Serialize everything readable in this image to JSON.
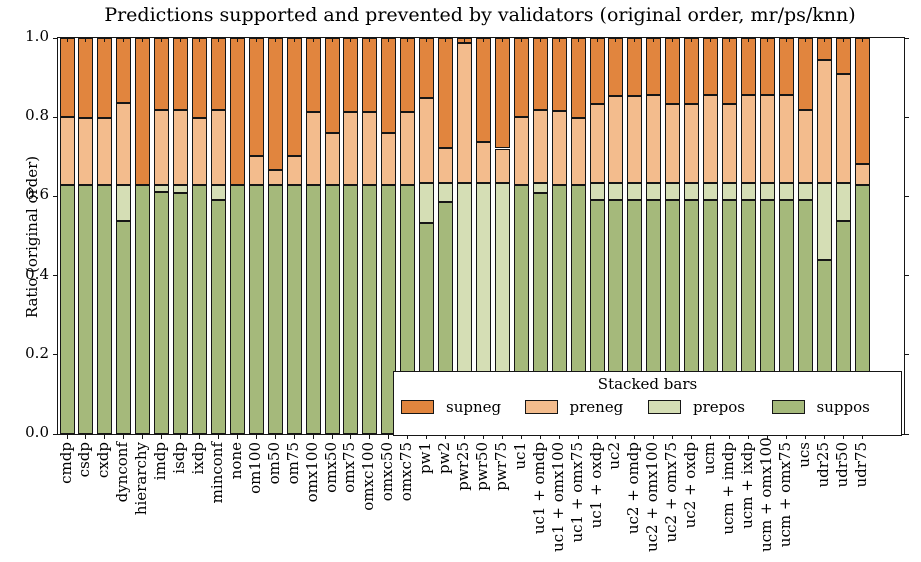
{
  "chart_data": {
    "type": "bar",
    "variant": "stacked",
    "title": "Predictions supported and prevented by validators (original order, mr/ps/knn)",
    "ylabel": "Ratio (original order)",
    "xlabel": "",
    "ylim": [
      0.0,
      1.0
    ],
    "yticks": [
      "0.0",
      "0.2",
      "0.4",
      "0.6",
      "0.8",
      "1.0"
    ],
    "grid": "off",
    "legend_position": "lower right inside plot",
    "categories": [
      "cmdp",
      "csdp",
      "cxdp",
      "dynconf",
      "hierarchy",
      "imdp",
      "isdp",
      "ixdp",
      "minconf",
      "none",
      "om100",
      "om50",
      "om75",
      "omx100",
      "omx50",
      "omx75",
      "omxc100",
      "omxc50",
      "omxc75",
      "pw1",
      "pw2",
      "pwr25",
      "pwr50",
      "pwr75",
      "uc1",
      "uc1 + omdp",
      "uc1 + omx100",
      "uc1 + omx75",
      "uc1 + oxdp",
      "uc2",
      "uc2 + omdp",
      "uc2 + omx100",
      "uc2 + omx75",
      "uc2 + oxdp",
      "ucm",
      "ucm + imdp",
      "ucm + ixdp",
      "ucm + omx100",
      "ucm + omx75",
      "ucs",
      "udr25",
      "udr50",
      "udr75"
    ],
    "stack_order": "bottom-to-top",
    "series": [
      {
        "name": "suppos",
        "color": "#A5B97B",
        "values": [
          0.63,
          0.63,
          0.63,
          0.537,
          0.63,
          0.611,
          0.608,
          0.63,
          0.592,
          0.63,
          0.63,
          0.63,
          0.63,
          0.63,
          0.63,
          0.63,
          0.63,
          0.63,
          0.63,
          0.532,
          0.587,
          0.0,
          0.1,
          0.1,
          0.63,
          0.608,
          0.63,
          0.63,
          0.591,
          0.591,
          0.591,
          0.591,
          0.591,
          0.591,
          0.591,
          0.591,
          0.591,
          0.591,
          0.591,
          0.591,
          0.44,
          0.537,
          0.63
        ]
      },
      {
        "name": "prepos",
        "color": "#D5DEB5",
        "values": [
          0.0,
          0.0,
          0.0,
          0.093,
          0.0,
          0.019,
          0.022,
          0.0,
          0.038,
          0.0,
          0.0,
          0.0,
          0.0,
          0.0,
          0.0,
          0.0,
          0.0,
          0.0,
          0.0,
          0.101,
          0.046,
          0.633,
          0.533,
          0.533,
          0.0,
          0.025,
          0.0,
          0.0,
          0.042,
          0.042,
          0.042,
          0.042,
          0.042,
          0.042,
          0.042,
          0.042,
          0.042,
          0.042,
          0.042,
          0.042,
          0.193,
          0.096,
          0.0
        ]
      },
      {
        "name": "preneg",
        "color": "#F3BC8D",
        "values": [
          0.17,
          0.167,
          0.167,
          0.205,
          0.0,
          0.187,
          0.187,
          0.167,
          0.187,
          0.0,
          0.071,
          0.036,
          0.071,
          0.183,
          0.129,
          0.184,
          0.184,
          0.129,
          0.183,
          0.216,
          0.09,
          0.354,
          0.105,
          0.088,
          0.17,
          0.185,
          0.186,
          0.167,
          0.2,
          0.22,
          0.22,
          0.223,
          0.2,
          0.2,
          0.223,
          0.2,
          0.223,
          0.223,
          0.223,
          0.185,
          0.312,
          0.277,
          0.053
        ]
      },
      {
        "name": "supneg",
        "color": "#E1853E",
        "values": [
          0.2,
          0.203,
          0.203,
          0.165,
          0.37,
          0.183,
          0.183,
          0.203,
          0.183,
          0.37,
          0.299,
          0.334,
          0.299,
          0.187,
          0.241,
          0.186,
          0.186,
          0.241,
          0.187,
          0.151,
          0.277,
          0.013,
          0.262,
          0.279,
          0.2,
          0.182,
          0.184,
          0.203,
          0.167,
          0.147,
          0.147,
          0.144,
          0.167,
          0.167,
          0.144,
          0.167,
          0.144,
          0.144,
          0.144,
          0.182,
          0.055,
          0.09,
          0.317
        ]
      }
    ]
  },
  "legend": {
    "title": "Stacked bars",
    "entries": [
      {
        "label": "supneg",
        "color": "#E1853E"
      },
      {
        "label": "preneg",
        "color": "#F3BC8D"
      },
      {
        "label": "prepos",
        "color": "#D5DEB5"
      },
      {
        "label": "suppos",
        "color": "#A5B97B"
      }
    ]
  },
  "colors": {
    "axis_and_edges": "#161616",
    "background": "#ffffff"
  }
}
